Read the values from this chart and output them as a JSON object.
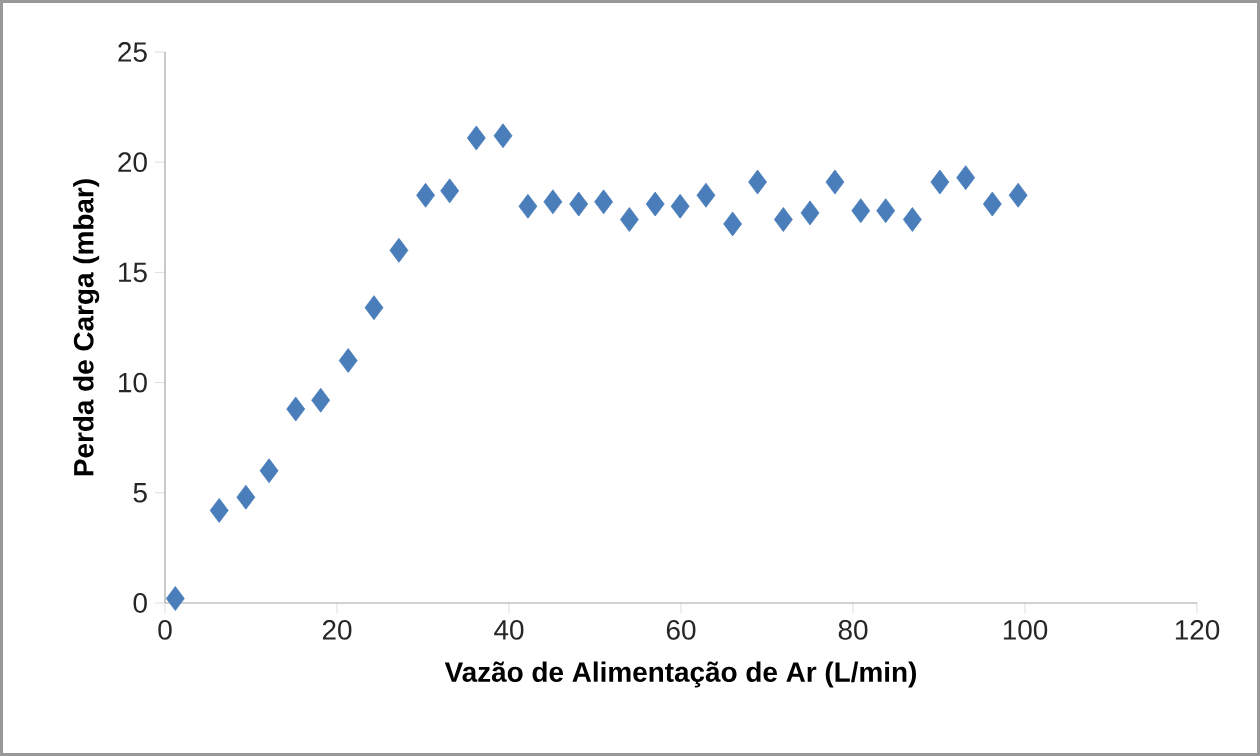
{
  "chart_data": {
    "type": "scatter",
    "xlabel": "Vazão de Alimentação de Ar (L/min)",
    "ylabel": "Perda de Carga (mbar)",
    "x": [
      1.2,
      6.3,
      9.4,
      12.1,
      15.2,
      18.1,
      21.3,
      24.3,
      27.2,
      30.3,
      33.1,
      36.2,
      39.3,
      42.2,
      45.1,
      48.1,
      51.0,
      54.0,
      57.0,
      59.9,
      62.9,
      66.0,
      68.9,
      71.9,
      75.0,
      77.9,
      80.9,
      83.8,
      86.9,
      90.1,
      93.1,
      96.2,
      99.2
    ],
    "values": [
      0.2,
      4.2,
      4.8,
      6.0,
      8.8,
      9.2,
      11.0,
      13.4,
      16.0,
      18.5,
      18.7,
      21.1,
      21.2,
      18.0,
      18.2,
      18.1,
      18.2,
      17.4,
      18.1,
      18.0,
      18.5,
      17.2,
      19.1,
      17.4,
      17.7,
      19.1,
      17.8,
      17.8,
      17.4,
      19.1,
      19.3,
      18.1,
      18.5
    ],
    "color": "#4a7ebb",
    "marker": "diamond",
    "xlim": [
      0,
      120
    ],
    "xticks": [
      0,
      20,
      40,
      60,
      80,
      100,
      120
    ],
    "ylim": [
      0,
      25
    ],
    "yticks": [
      0,
      5,
      10,
      15,
      20,
      25
    ],
    "grid": false
  }
}
